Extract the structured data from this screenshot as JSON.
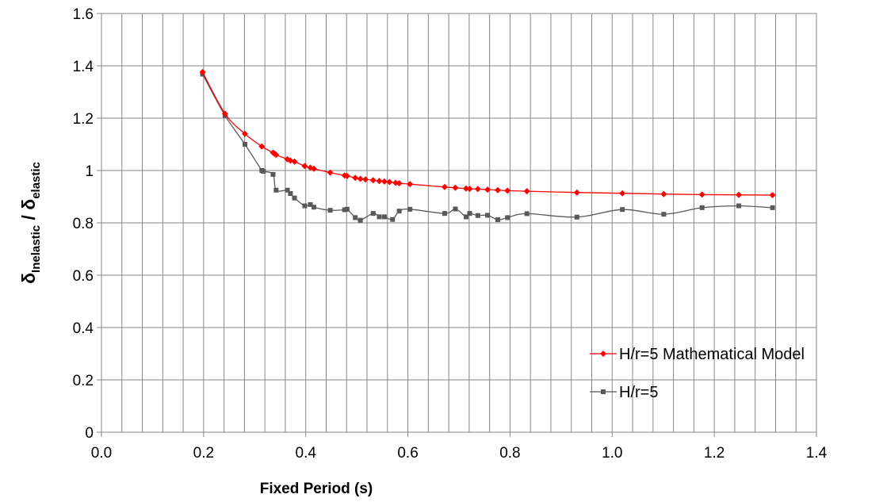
{
  "chart_data": {
    "type": "line",
    "xlabel": "Fixed Period (s)",
    "ylabel": {
      "symbol1": "δ",
      "sub1": "Inelastic",
      "separator": " / ",
      "symbol2": "δ",
      "sub2": "elastic"
    },
    "xlim": [
      0.0,
      1.4
    ],
    "ylim": [
      0,
      1.6
    ],
    "x_ticks": [
      0.0,
      0.2,
      0.4,
      0.6,
      0.8,
      1.0,
      1.2,
      1.4
    ],
    "x_tick_labels": [
      "0.0",
      "0.2",
      "0.4",
      "0.6",
      "0.8",
      "1.0",
      "1.2",
      "1.4"
    ],
    "y_ticks": [
      0,
      0.2,
      0.4,
      0.6,
      0.8,
      1.0,
      1.2,
      1.4,
      1.6
    ],
    "y_tick_labels": [
      "0",
      "0.2",
      "0.4",
      "0.6",
      "0.8",
      "1",
      "1.2",
      "1.4",
      "1.6"
    ],
    "grid": "vertical lines every 0.04 s; horizontal lines at major y ticks",
    "legend_position": "lower-right",
    "series": [
      {
        "name": "H/r=5 Mathematical Model",
        "color": "#ff0000",
        "marker": "diamond",
        "x": [
          0.198,
          0.242,
          0.281,
          0.314,
          0.336,
          0.339,
          0.342,
          0.364,
          0.37,
          0.378,
          0.398,
          0.409,
          0.416,
          0.448,
          0.476,
          0.481,
          0.497,
          0.507,
          0.517,
          0.532,
          0.544,
          0.554,
          0.564,
          0.576,
          0.583,
          0.604,
          0.672,
          0.693,
          0.714,
          0.721,
          0.737,
          0.756,
          0.776,
          0.795,
          0.833,
          0.931,
          1.02,
          1.101,
          1.176,
          1.248,
          1.314
        ],
        "y": [
          1.376,
          1.217,
          1.14,
          1.092,
          1.068,
          1.064,
          1.06,
          1.043,
          1.038,
          1.034,
          1.017,
          1.011,
          1.007,
          0.992,
          0.981,
          0.979,
          0.972,
          0.968,
          0.966,
          0.963,
          0.96,
          0.958,
          0.956,
          0.953,
          0.951,
          0.948,
          0.937,
          0.934,
          0.931,
          0.93,
          0.929,
          0.927,
          0.925,
          0.923,
          0.921,
          0.916,
          0.913,
          0.91,
          0.908,
          0.907,
          0.906
        ]
      },
      {
        "name": "H/r=5",
        "color": "#595959",
        "marker": "square",
        "x": [
          0.198,
          0.242,
          0.281,
          0.314,
          0.317,
          0.336,
          0.342,
          0.364,
          0.37,
          0.378,
          0.398,
          0.409,
          0.416,
          0.448,
          0.476,
          0.481,
          0.497,
          0.507,
          0.532,
          0.544,
          0.554,
          0.57,
          0.583,
          0.604,
          0.672,
          0.693,
          0.714,
          0.721,
          0.737,
          0.756,
          0.776,
          0.795,
          0.833,
          0.931,
          1.02,
          1.101,
          1.176,
          1.248,
          1.314
        ],
        "y": [
          1.368,
          1.21,
          1.1,
          1.0,
          0.997,
          0.985,
          0.925,
          0.925,
          0.912,
          0.895,
          0.865,
          0.87,
          0.86,
          0.848,
          0.85,
          0.852,
          0.82,
          0.81,
          0.836,
          0.823,
          0.823,
          0.813,
          0.845,
          0.852,
          0.836,
          0.853,
          0.823,
          0.836,
          0.828,
          0.829,
          0.812,
          0.82,
          0.835,
          0.822,
          0.851,
          0.833,
          0.858,
          0.865,
          0.858
        ]
      }
    ]
  }
}
